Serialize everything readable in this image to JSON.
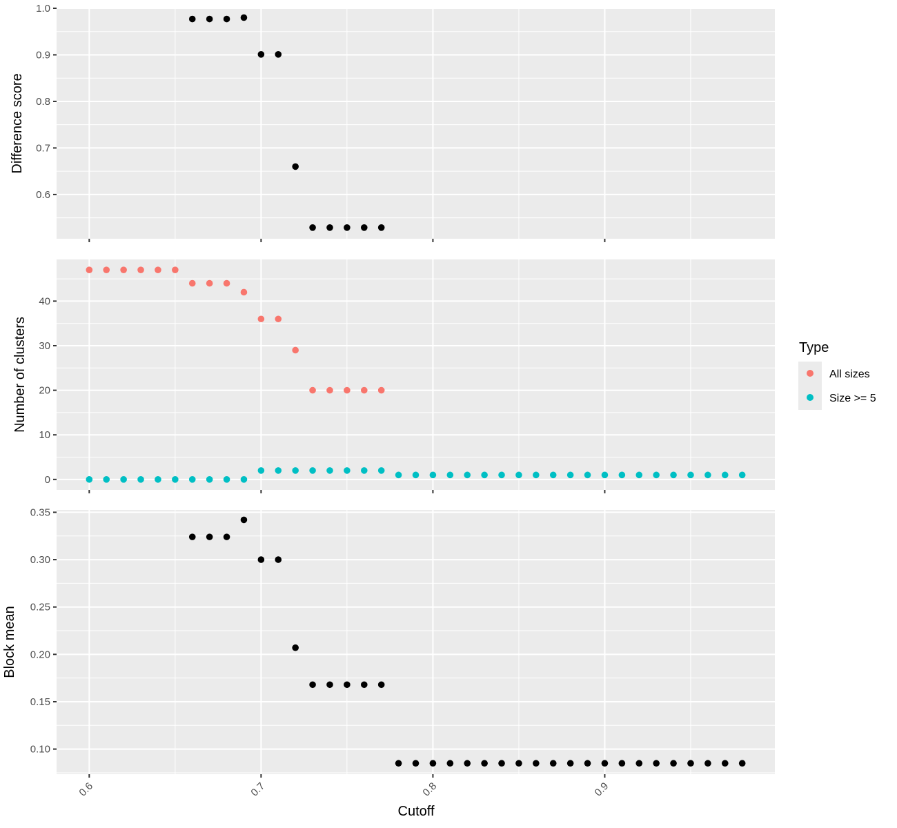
{
  "chart_data": {
    "type": "scatter",
    "xlabel": "Cutoff",
    "x_ticks": [
      0.6,
      0.7,
      0.8,
      0.9
    ],
    "x_tick_labels": [
      "0.6",
      "0.7",
      "0.8",
      "0.9"
    ],
    "xlim": [
      0.581,
      0.999
    ],
    "legend": {
      "title": "Type",
      "placement": "right",
      "entries": [
        {
          "label": "All sizes",
          "color": "#f8766d"
        },
        {
          "label": "Size >= 5",
          "color": "#00bfc4"
        }
      ]
    },
    "panels": [
      {
        "ylabel": "Difference score",
        "ylim": [
          0.505,
          1.0
        ],
        "y_ticks": [
          0.6,
          0.7,
          0.8,
          0.9,
          1.0
        ],
        "y_tick_labels": [
          "0.6",
          "0.7",
          "0.8",
          "0.9",
          "1.0"
        ],
        "series": [
          {
            "color": "#000000",
            "points": [
              [
                0.66,
                0.977
              ],
              [
                0.67,
                0.977
              ],
              [
                0.68,
                0.977
              ],
              [
                0.69,
                0.98
              ],
              [
                0.7,
                0.901
              ],
              [
                0.71,
                0.901
              ],
              [
                0.72,
                0.66
              ],
              [
                0.73,
                0.529
              ],
              [
                0.74,
                0.529
              ],
              [
                0.75,
                0.529
              ],
              [
                0.76,
                0.529
              ],
              [
                0.77,
                0.529
              ]
            ]
          }
        ]
      },
      {
        "ylabel": "Number of clusters",
        "ylim": [
          -2.35,
          49.35
        ],
        "y_ticks": [
          0,
          10,
          20,
          30,
          40
        ],
        "y_tick_labels": [
          "0",
          "10",
          "20",
          "30",
          "40"
        ],
        "series": [
          {
            "name": "All sizes",
            "color": "#f8766d",
            "points": [
              [
                0.6,
                47
              ],
              [
                0.61,
                47
              ],
              [
                0.62,
                47
              ],
              [
                0.63,
                47
              ],
              [
                0.64,
                47
              ],
              [
                0.65,
                47
              ],
              [
                0.66,
                44
              ],
              [
                0.67,
                44
              ],
              [
                0.68,
                44
              ],
              [
                0.69,
                42
              ],
              [
                0.7,
                36
              ],
              [
                0.71,
                36
              ],
              [
                0.72,
                29
              ],
              [
                0.73,
                20
              ],
              [
                0.74,
                20
              ],
              [
                0.75,
                20
              ],
              [
                0.76,
                20
              ],
              [
                0.77,
                20
              ]
            ]
          },
          {
            "name": "Size >= 5",
            "color": "#00bfc4",
            "points": [
              [
                0.6,
                0
              ],
              [
                0.61,
                0
              ],
              [
                0.62,
                0
              ],
              [
                0.63,
                0
              ],
              [
                0.64,
                0
              ],
              [
                0.65,
                0
              ],
              [
                0.66,
                0
              ],
              [
                0.67,
                0
              ],
              [
                0.68,
                0
              ],
              [
                0.69,
                0
              ],
              [
                0.7,
                2
              ],
              [
                0.71,
                2
              ],
              [
                0.72,
                2
              ],
              [
                0.73,
                2
              ],
              [
                0.74,
                2
              ],
              [
                0.75,
                2
              ],
              [
                0.76,
                2
              ],
              [
                0.77,
                2
              ],
              [
                0.78,
                1
              ],
              [
                0.79,
                1
              ],
              [
                0.8,
                1
              ],
              [
                0.81,
                1
              ],
              [
                0.82,
                1
              ],
              [
                0.83,
                1
              ],
              [
                0.84,
                1
              ],
              [
                0.85,
                1
              ],
              [
                0.86,
                1
              ],
              [
                0.87,
                1
              ],
              [
                0.88,
                1
              ],
              [
                0.89,
                1
              ],
              [
                0.9,
                1
              ],
              [
                0.91,
                1
              ],
              [
                0.92,
                1
              ],
              [
                0.93,
                1
              ],
              [
                0.94,
                1
              ],
              [
                0.95,
                1
              ],
              [
                0.96,
                1
              ],
              [
                0.97,
                1
              ],
              [
                0.98,
                1
              ]
            ]
          }
        ]
      },
      {
        "ylabel": "Block mean",
        "ylim": [
          0.0735,
          0.3525
        ],
        "y_ticks": [
          0.1,
          0.15,
          0.2,
          0.25,
          0.3,
          0.35
        ],
        "y_tick_labels": [
          "0.10",
          "0.15",
          "0.20",
          "0.25",
          "0.30",
          "0.35"
        ],
        "series": [
          {
            "color": "#000000",
            "points": [
              [
                0.66,
                0.324
              ],
              [
                0.67,
                0.324
              ],
              [
                0.68,
                0.324
              ],
              [
                0.69,
                0.342
              ],
              [
                0.7,
                0.3
              ],
              [
                0.71,
                0.3
              ],
              [
                0.72,
                0.207
              ],
              [
                0.73,
                0.168
              ],
              [
                0.74,
                0.168
              ],
              [
                0.75,
                0.168
              ],
              [
                0.76,
                0.168
              ],
              [
                0.77,
                0.168
              ],
              [
                0.78,
                0.085
              ],
              [
                0.79,
                0.085
              ],
              [
                0.8,
                0.085
              ],
              [
                0.81,
                0.085
              ],
              [
                0.82,
                0.085
              ],
              [
                0.83,
                0.085
              ],
              [
                0.84,
                0.085
              ],
              [
                0.85,
                0.085
              ],
              [
                0.86,
                0.085
              ],
              [
                0.87,
                0.085
              ],
              [
                0.88,
                0.085
              ],
              [
                0.89,
                0.085
              ],
              [
                0.9,
                0.085
              ],
              [
                0.91,
                0.085
              ],
              [
                0.92,
                0.085
              ],
              [
                0.93,
                0.085
              ],
              [
                0.94,
                0.085
              ],
              [
                0.95,
                0.085
              ],
              [
                0.96,
                0.085
              ],
              [
                0.97,
                0.085
              ],
              [
                0.98,
                0.085
              ]
            ]
          }
        ]
      }
    ]
  }
}
